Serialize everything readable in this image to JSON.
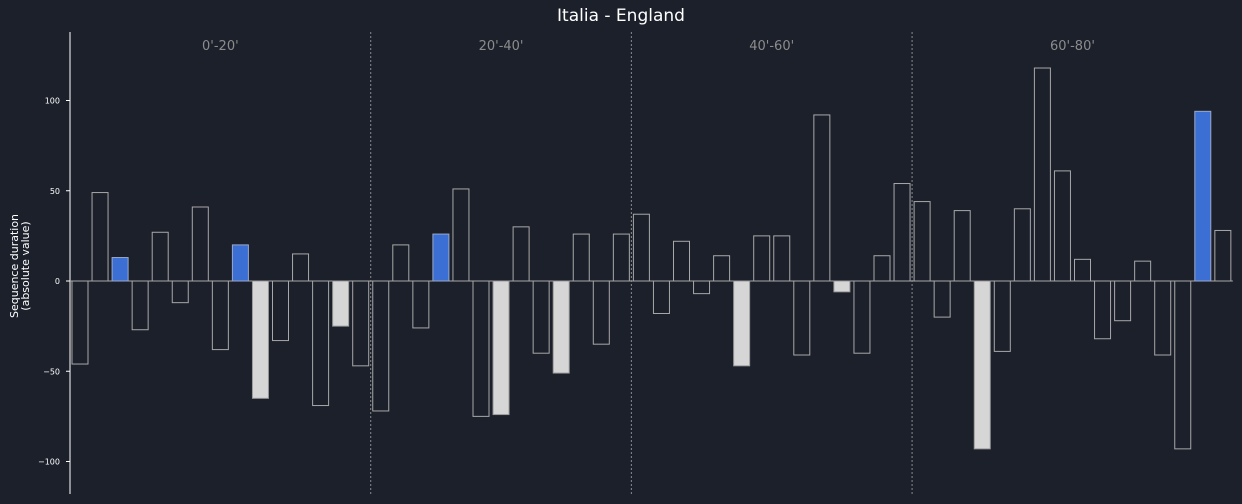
{
  "chart_data": {
    "type": "bar",
    "title": "Italia - England",
    "ylabel": [
      "Sequence duration",
      "(absolute value)"
    ],
    "xlabel": "",
    "ylim": [
      -118,
      138
    ],
    "yticks": [
      -100,
      -50,
      0,
      50,
      100
    ],
    "grid": false,
    "periods": [
      {
        "label": "0'-20'",
        "start": 0,
        "end": 15
      },
      {
        "label": "20'-40'",
        "start": 15,
        "end": 28
      },
      {
        "label": "40'-60'",
        "start": 28,
        "end": 42
      },
      {
        "label": "60'-80'",
        "start": 42,
        "end": 58
      }
    ],
    "colors": {
      "background": "#1c202b",
      "bar_edge": "#a8a8a8",
      "highlight_blue": "#3b6fd4",
      "highlight_grey": "#d6d6d6",
      "separator": "#8a8a8a",
      "period_label": "#8c8c8c",
      "text": "#ffffff"
    },
    "series": [
      {
        "values": [
          -46,
          49,
          13,
          -27,
          27,
          -12,
          41,
          -38,
          20,
          -65,
          -33,
          15,
          -69,
          -25,
          -47,
          -72,
          20,
          -26,
          26,
          51,
          -75,
          -74,
          30,
          -40,
          -51,
          26,
          -35,
          26,
          37,
          -18,
          22,
          -7,
          14,
          -47,
          25,
          25,
          -41,
          92,
          -6,
          -40,
          14,
          54,
          44,
          -20,
          39,
          -93,
          -39,
          40,
          118,
          61,
          12,
          -32,
          -22,
          11,
          -41,
          -93,
          94,
          28
        ],
        "highlight": [
          "none",
          "none",
          "blue",
          "none",
          "none",
          "none",
          "none",
          "none",
          "blue",
          "grey",
          "none",
          "none",
          "none",
          "grey",
          "none",
          "none",
          "none",
          "none",
          "blue",
          "none",
          "none",
          "grey",
          "none",
          "none",
          "grey",
          "none",
          "none",
          "none",
          "none",
          "none",
          "none",
          "none",
          "none",
          "grey",
          "none",
          "none",
          "none",
          "none",
          "grey",
          "none",
          "none",
          "none",
          "none",
          "none",
          "none",
          "grey",
          "none",
          "none",
          "none",
          "none",
          "none",
          "none",
          "none",
          "none",
          "none",
          "none",
          "blue",
          "none"
        ]
      }
    ]
  }
}
